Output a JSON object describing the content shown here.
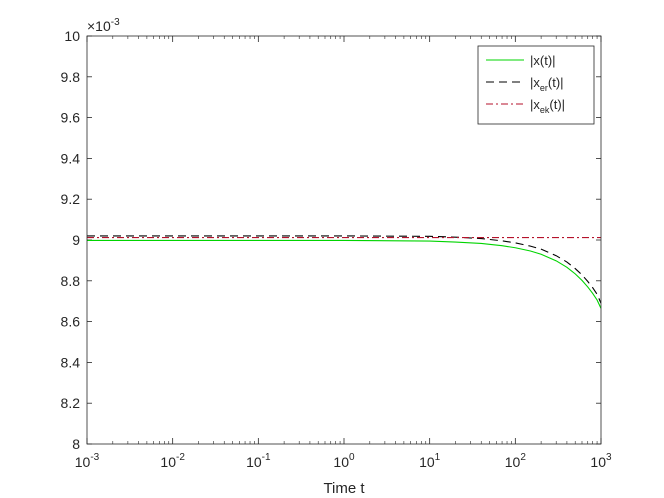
{
  "chart_data": {
    "type": "line",
    "xlabel": "Time t",
    "ylabel": "",
    "x_scale": "log",
    "xlim": [
      0.001,
      1000
    ],
    "ylim": [
      0.008,
      0.01
    ],
    "y_multiplier_label": "×10",
    "y_multiplier_exponent": "-3",
    "x_ticks": [
      {
        "base": "10",
        "exp": "-3"
      },
      {
        "base": "10",
        "exp": "-2"
      },
      {
        "base": "10",
        "exp": "-1"
      },
      {
        "base": "10",
        "exp": "0"
      },
      {
        "base": "10",
        "exp": "1"
      },
      {
        "base": "10",
        "exp": "2"
      },
      {
        "base": "10",
        "exp": "3"
      }
    ],
    "y_ticks": [
      "8",
      "8.2",
      "8.4",
      "8.6",
      "8.8",
      "9",
      "9.2",
      "9.4",
      "9.6",
      "9.8",
      "10"
    ],
    "legend_position": "top-right",
    "series": [
      {
        "name": "|x(t)|",
        "label_parts": {
          "pre": "|x(t)|",
          "sub": "",
          "post": ""
        },
        "color": "#00d400",
        "dash": "solid",
        "x": [
          0.001,
          0.01,
          0.1,
          1,
          10,
          20,
          40,
          70,
          100,
          150,
          200,
          300,
          400,
          500,
          600,
          700,
          800,
          900,
          1000
        ],
        "y": [
          0.008998,
          0.008998,
          0.008998,
          0.008998,
          0.008995,
          0.00899,
          0.008983,
          0.008972,
          0.008962,
          0.008946,
          0.00893,
          0.008898,
          0.008866,
          0.008834,
          0.008802,
          0.00877,
          0.008738,
          0.008706,
          0.008665
        ]
      },
      {
        "name": "|x_er(t)|",
        "label_parts": {
          "pre": "|x",
          "sub": "er",
          "post": "(t)|"
        },
        "color": "#000000",
        "dash": "dashed",
        "x": [
          0.001,
          0.01,
          0.1,
          1,
          10,
          20,
          40,
          70,
          100,
          150,
          200,
          300,
          400,
          500,
          600,
          700,
          800,
          900,
          1000
        ],
        "y": [
          0.00902,
          0.00902,
          0.00902,
          0.00902,
          0.009018,
          0.009014,
          0.009007,
          0.008996,
          0.008986,
          0.00897,
          0.008955,
          0.008923,
          0.008892,
          0.00886,
          0.008829,
          0.008797,
          0.008766,
          0.008734,
          0.00869
        ]
      },
      {
        "name": "|x_ek(t)|",
        "label_parts": {
          "pre": "|x",
          "sub": "ek",
          "post": "(t)|"
        },
        "color": "#b5122b",
        "dash": "dashdot",
        "x": [
          0.001,
          1000
        ],
        "y": [
          0.009012,
          0.009012
        ]
      }
    ]
  }
}
